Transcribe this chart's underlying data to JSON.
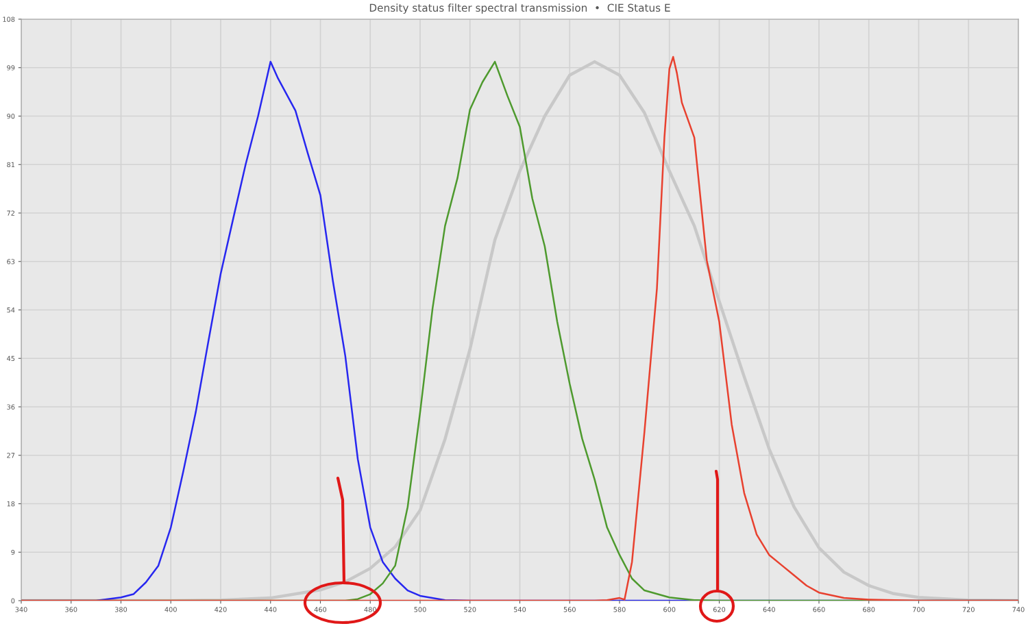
{
  "chart_data": {
    "type": "line",
    "title": "Density status filter spectral transmission  •  CIE Status E",
    "xlim": [
      340,
      740
    ],
    "ylim": [
      0,
      108
    ],
    "xticks": [
      340,
      360,
      380,
      400,
      420,
      440,
      460,
      480,
      500,
      520,
      540,
      560,
      580,
      600,
      620,
      640,
      660,
      680,
      700,
      720,
      740
    ],
    "yticks": [
      0,
      9,
      18,
      27,
      36,
      45,
      54,
      63,
      72,
      81,
      90,
      99,
      108
    ],
    "grid": true,
    "marker": "none",
    "line_style": "solid",
    "series": [
      {
        "color": "#c8c8c8",
        "x": [
          340,
          400,
          420,
          440,
          460,
          470,
          480,
          490,
          500,
          510,
          520,
          530,
          540,
          550,
          560,
          570,
          580,
          590,
          600,
          610,
          620,
          630,
          640,
          650,
          660,
          670,
          680,
          690,
          700,
          720,
          740
        ],
        "values": [
          0,
          0,
          0.1,
          0.5,
          2,
          3.5,
          6,
          10,
          16.8,
          30,
          46.7,
          67,
          79.8,
          90,
          97.6,
          100.1,
          97.6,
          90.6,
          79.8,
          69.6,
          55.6,
          41.6,
          28.2,
          17.4,
          9.8,
          5.3,
          2.8,
          1.3,
          0.6,
          0.1,
          0
        ]
      },
      {
        "color": "#2727f0",
        "x": [
          340,
          370,
          380,
          385,
          390,
          395,
          400,
          405,
          410,
          415,
          420,
          425,
          430,
          435,
          440,
          443,
          445,
          450,
          455,
          460,
          465,
          470,
          475,
          480,
          485,
          490,
          495,
          500,
          510,
          520,
          740
        ],
        "values": [
          0,
          0,
          0.6,
          1.2,
          3.4,
          6.5,
          13.6,
          24,
          35,
          48,
          60.7,
          70.9,
          81,
          90,
          100.1,
          97,
          95.3,
          91,
          83,
          75.3,
          59.4,
          45.4,
          26.3,
          13.6,
          7.2,
          4.1,
          1.9,
          0.9,
          0.1,
          0,
          0
        ]
      },
      {
        "color": "#4e9a2e",
        "x": [
          340,
          470,
          475,
          480,
          485,
          490,
          495,
          500,
          505,
          510,
          515,
          520,
          525,
          530,
          535,
          540,
          545,
          550,
          555,
          560,
          565,
          570,
          575,
          580,
          585,
          590,
          600,
          610,
          620,
          740
        ],
        "values": [
          0,
          0,
          0.3,
          1.2,
          3.2,
          6.5,
          17.4,
          35,
          54.3,
          69.6,
          78.5,
          91.2,
          96.3,
          100.1,
          93.8,
          88,
          74.7,
          65.8,
          51.8,
          40.3,
          30.1,
          22.5,
          13.6,
          8.5,
          4.1,
          1.9,
          0.6,
          0.1,
          0,
          0
        ]
      },
      {
        "color": "#e8412f",
        "x": [
          340,
          570,
          575,
          580,
          582,
          585,
          590,
          595,
          598,
          600,
          601.5,
          603,
          605,
          610,
          615,
          620,
          625,
          630,
          635,
          640,
          645,
          650,
          655,
          660,
          670,
          680,
          700,
          740
        ],
        "values": [
          0,
          0,
          0.1,
          0.5,
          0.2,
          7.2,
          31.4,
          58,
          86,
          98.8,
          101,
          98,
          92.5,
          86,
          63.2,
          51.8,
          32.7,
          20,
          12.3,
          8.5,
          6.6,
          4.7,
          2.8,
          1.5,
          0.5,
          0.2,
          0,
          0
        ]
      }
    ]
  }
}
